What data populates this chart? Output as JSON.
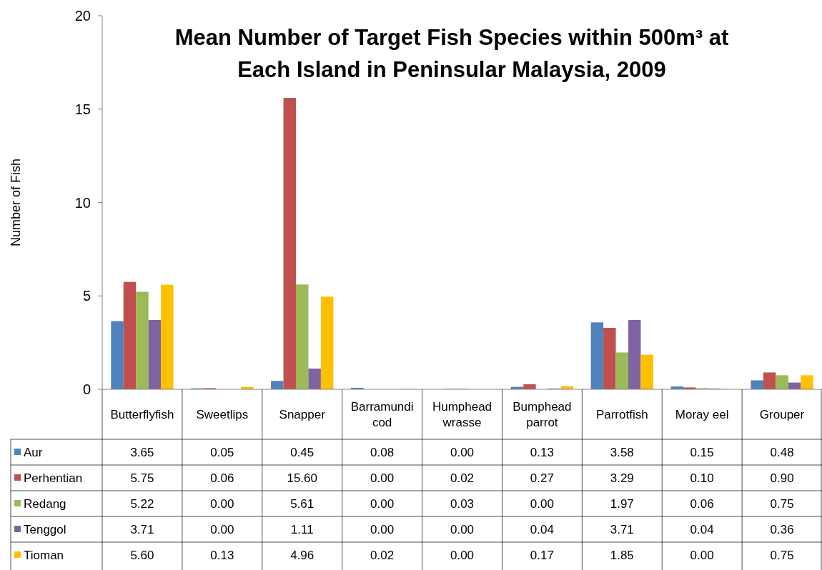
{
  "chart_data": {
    "type": "bar",
    "title": "Mean Number of Target Fish Species within 500m³ at Each Island in Peninsular Malaysia, 2009",
    "ylabel": "Number of Fish",
    "categories": [
      "Butterflyfish",
      "Sweetlips",
      "Snapper",
      "Barramundi cod",
      "Humphead wrasse",
      "Bumphead parrot",
      "Parrotfish",
      "Moray eel",
      "Grouper"
    ],
    "series": [
      {
        "name": "Aur",
        "color": "#4f81bd",
        "values": [
          3.65,
          0.05,
          0.45,
          0.08,
          0,
          0.13,
          3.58,
          0.15,
          0.48
        ],
        "value_labels": [
          "3.65",
          "0.05",
          "0.45",
          "0.08",
          "0.00",
          "0.13",
          "3.58",
          "0.15",
          "0.48"
        ]
      },
      {
        "name": "Perhentian",
        "color": "#c0504d",
        "values": [
          5.75,
          0.06,
          15.6,
          0,
          0.02,
          0.27,
          3.29,
          0.1,
          0.9
        ],
        "value_labels": [
          "5.75",
          "0.06",
          "15.60",
          "0.00",
          "0.02",
          "0.27",
          "3.29",
          "0.10",
          "0.90"
        ]
      },
      {
        "name": "Redang",
        "color": "#9bbb59",
        "values": [
          5.22,
          0,
          5.61,
          0,
          0.03,
          0,
          1.97,
          0.06,
          0.75
        ],
        "value_labels": [
          "5.22",
          "0.00",
          "5.61",
          "0.00",
          "0.03",
          "0.00",
          "1.97",
          "0.06",
          "0.75"
        ]
      },
      {
        "name": "Tenggol",
        "color": "#8064a2",
        "values": [
          3.71,
          0,
          1.11,
          0,
          0,
          0.04,
          3.71,
          0.04,
          0.36
        ],
        "value_labels": [
          "3.71",
          "0.00",
          "1.11",
          "0.00",
          "0.00",
          "0.04",
          "3.71",
          "0.04",
          "0.36"
        ]
      },
      {
        "name": "Tioman",
        "color": "#ffc000",
        "values": [
          5.6,
          0.13,
          4.96,
          0.02,
          0,
          0.17,
          1.85,
          0,
          0.75
        ],
        "value_labels": [
          "5.60",
          "0.13",
          "4.96",
          "0.02",
          "0.00",
          "0.17",
          "1.85",
          "0.00",
          "0.75"
        ]
      }
    ],
    "ylim": [
      0,
      20
    ],
    "yticks": [
      0,
      5,
      10,
      15,
      20
    ],
    "grid": false,
    "legend": "bottom"
  }
}
